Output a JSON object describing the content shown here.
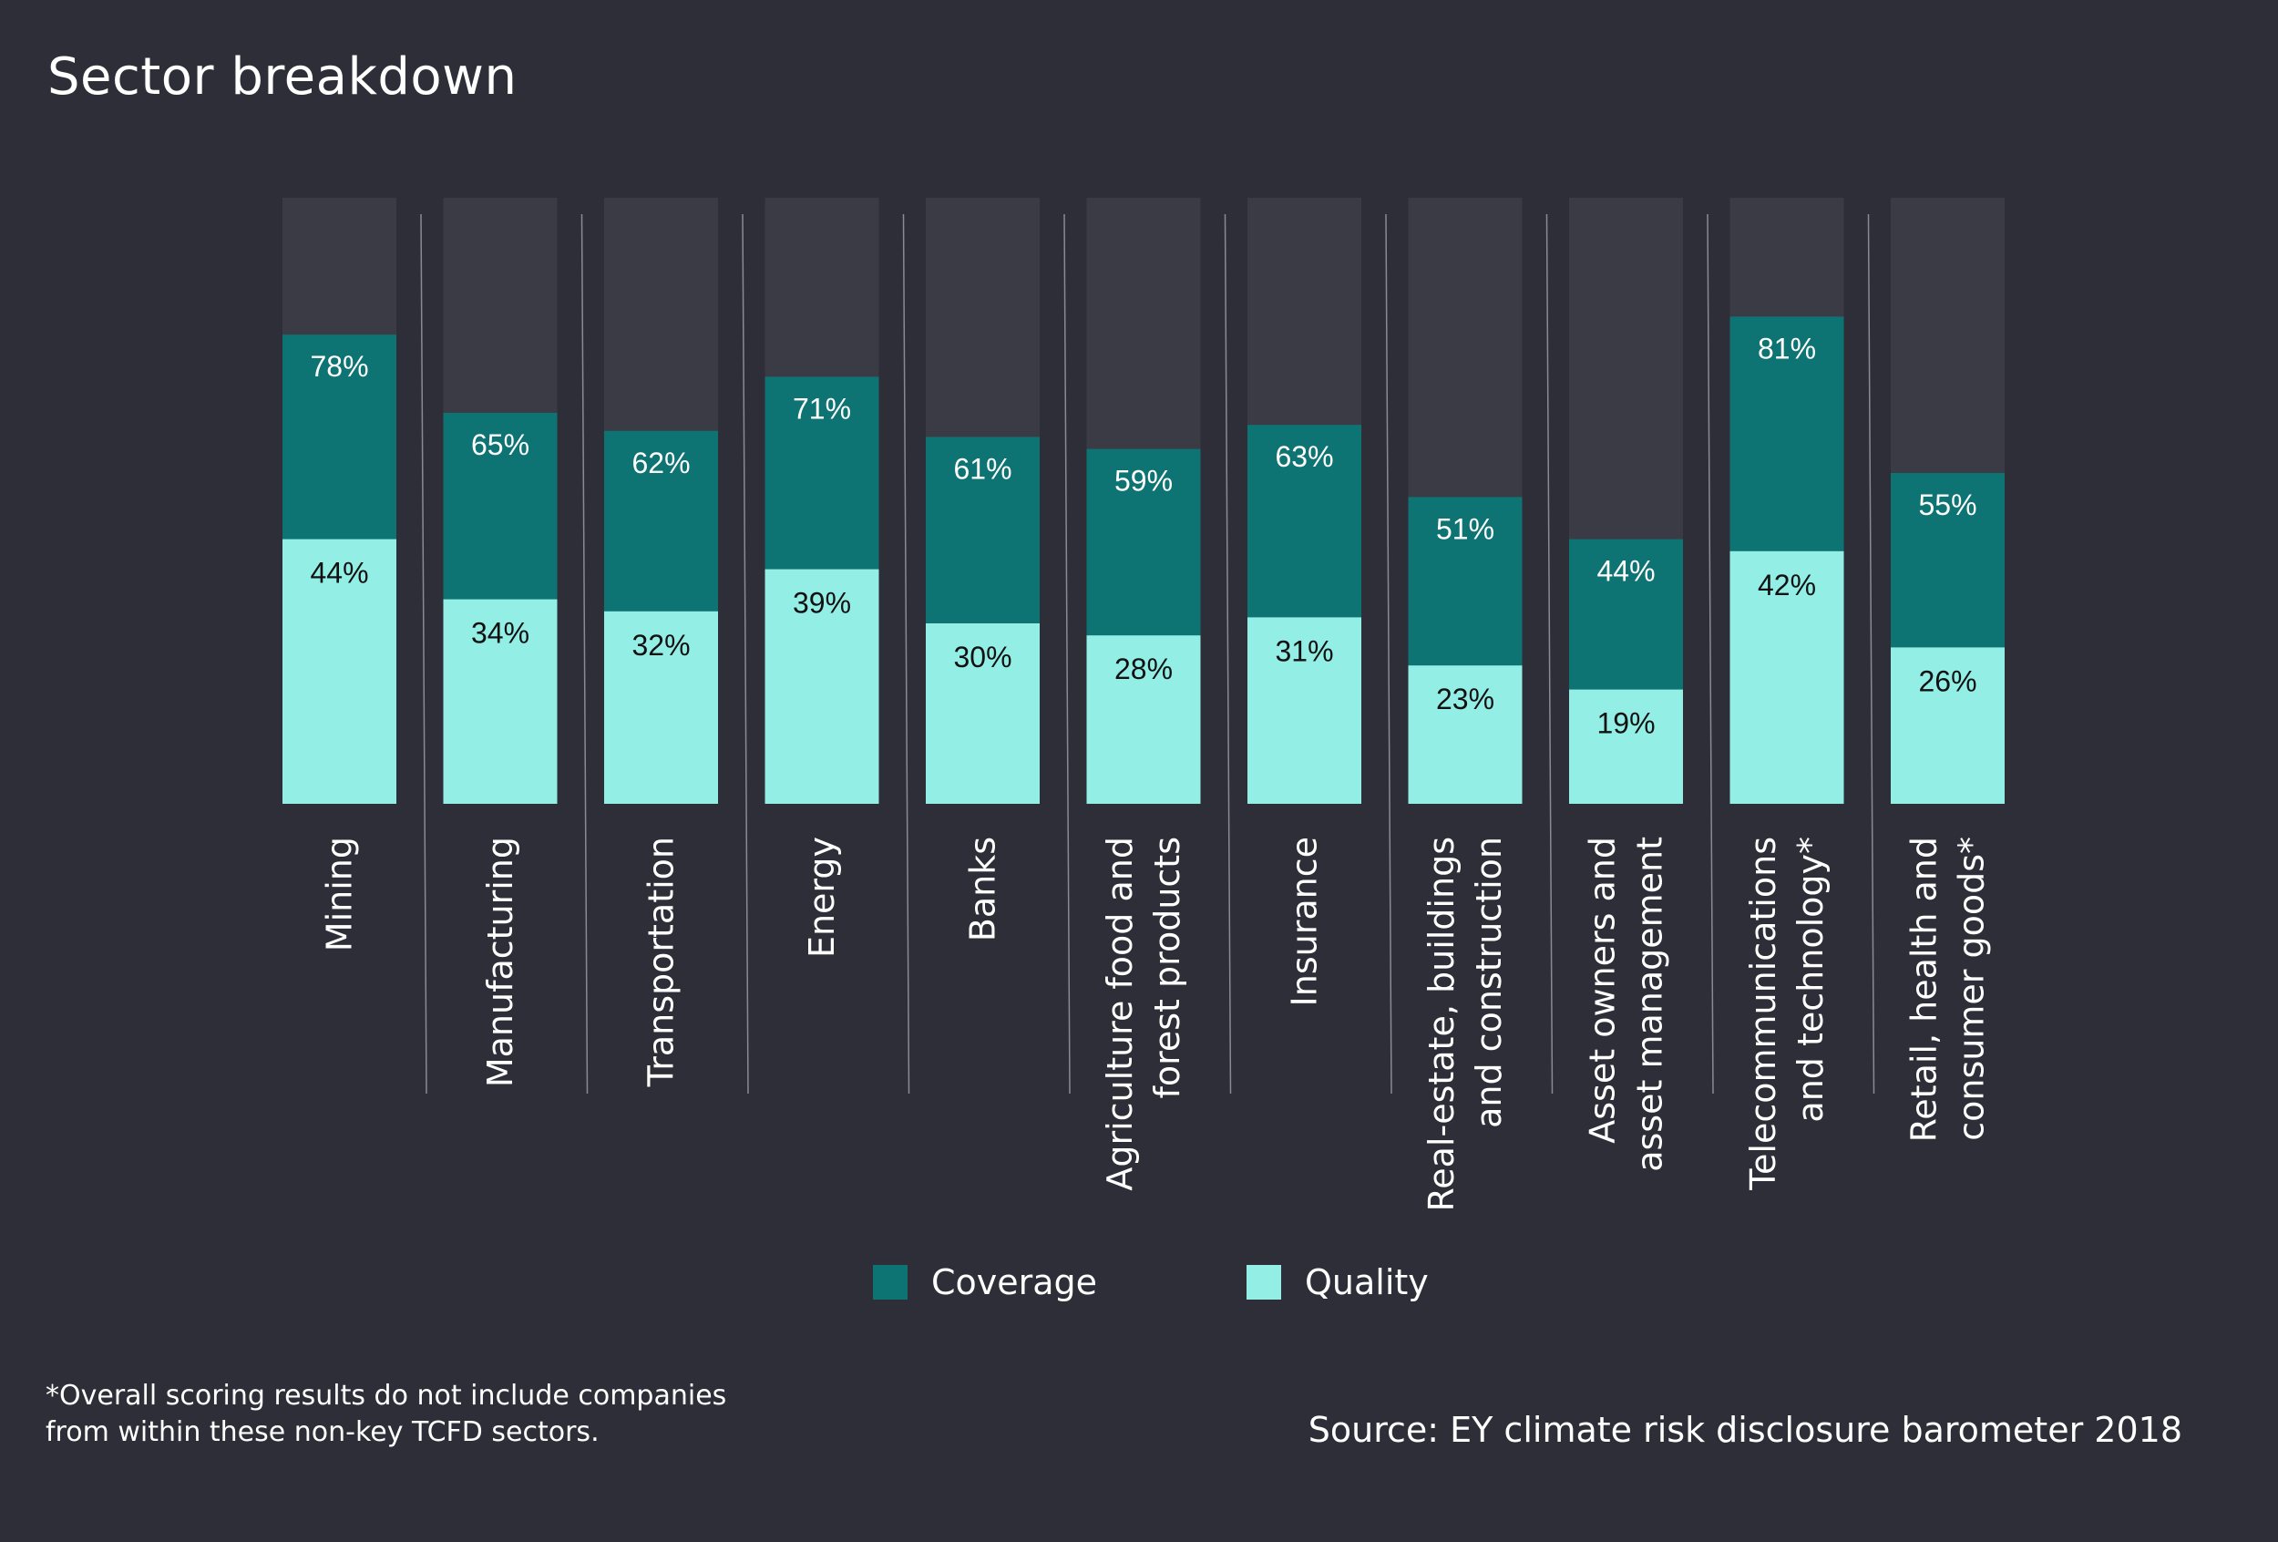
{
  "page": {
    "title": "Sector breakdown",
    "footnote_line1": "*Overall scoring results do not include companies",
    "footnote_line2": "from within these non-key TCFD sectors.",
    "source": "Source: EY climate risk disclosure barometer 2018"
  },
  "colors": {
    "background": "#2e2e38",
    "track": "#3b3b46",
    "coverage": "#0e7373",
    "quality": "#93efe5",
    "divider": "#8a8a92"
  },
  "chart_data": {
    "type": "bar",
    "title": "Sector breakdown",
    "categories": [
      [
        "Mining"
      ],
      [
        "Manufacturing"
      ],
      [
        "Transportation"
      ],
      [
        "Energy"
      ],
      [
        "Banks"
      ],
      [
        "Agriculture food and",
        "forest products"
      ],
      [
        "Insurance"
      ],
      [
        "Real-estate, buildings",
        "and construction"
      ],
      [
        "Asset owners and",
        "asset management"
      ],
      [
        "Telecommunications",
        "and technology*"
      ],
      [
        "Retail, health and",
        "consumer goods*"
      ]
    ],
    "series": [
      {
        "name": "Coverage",
        "values": [
          78,
          65,
          62,
          71,
          61,
          59,
          63,
          51,
          44,
          81,
          55
        ],
        "labels": [
          "78%",
          "65%",
          "62%",
          "71%",
          "61%",
          "59%",
          "63%",
          "51%",
          "44%",
          "81%",
          "55%"
        ]
      },
      {
        "name": "Quality",
        "values": [
          44,
          34,
          32,
          39,
          30,
          28,
          31,
          23,
          19,
          42,
          26
        ],
        "labels": [
          "44%",
          "34%",
          "32%",
          "39%",
          "30%",
          "28%",
          "31%",
          "23%",
          "19%",
          "42%",
          "26%"
        ]
      }
    ],
    "ylim": [
      0,
      100
    ],
    "legend": "bottom-center",
    "grid": false
  }
}
